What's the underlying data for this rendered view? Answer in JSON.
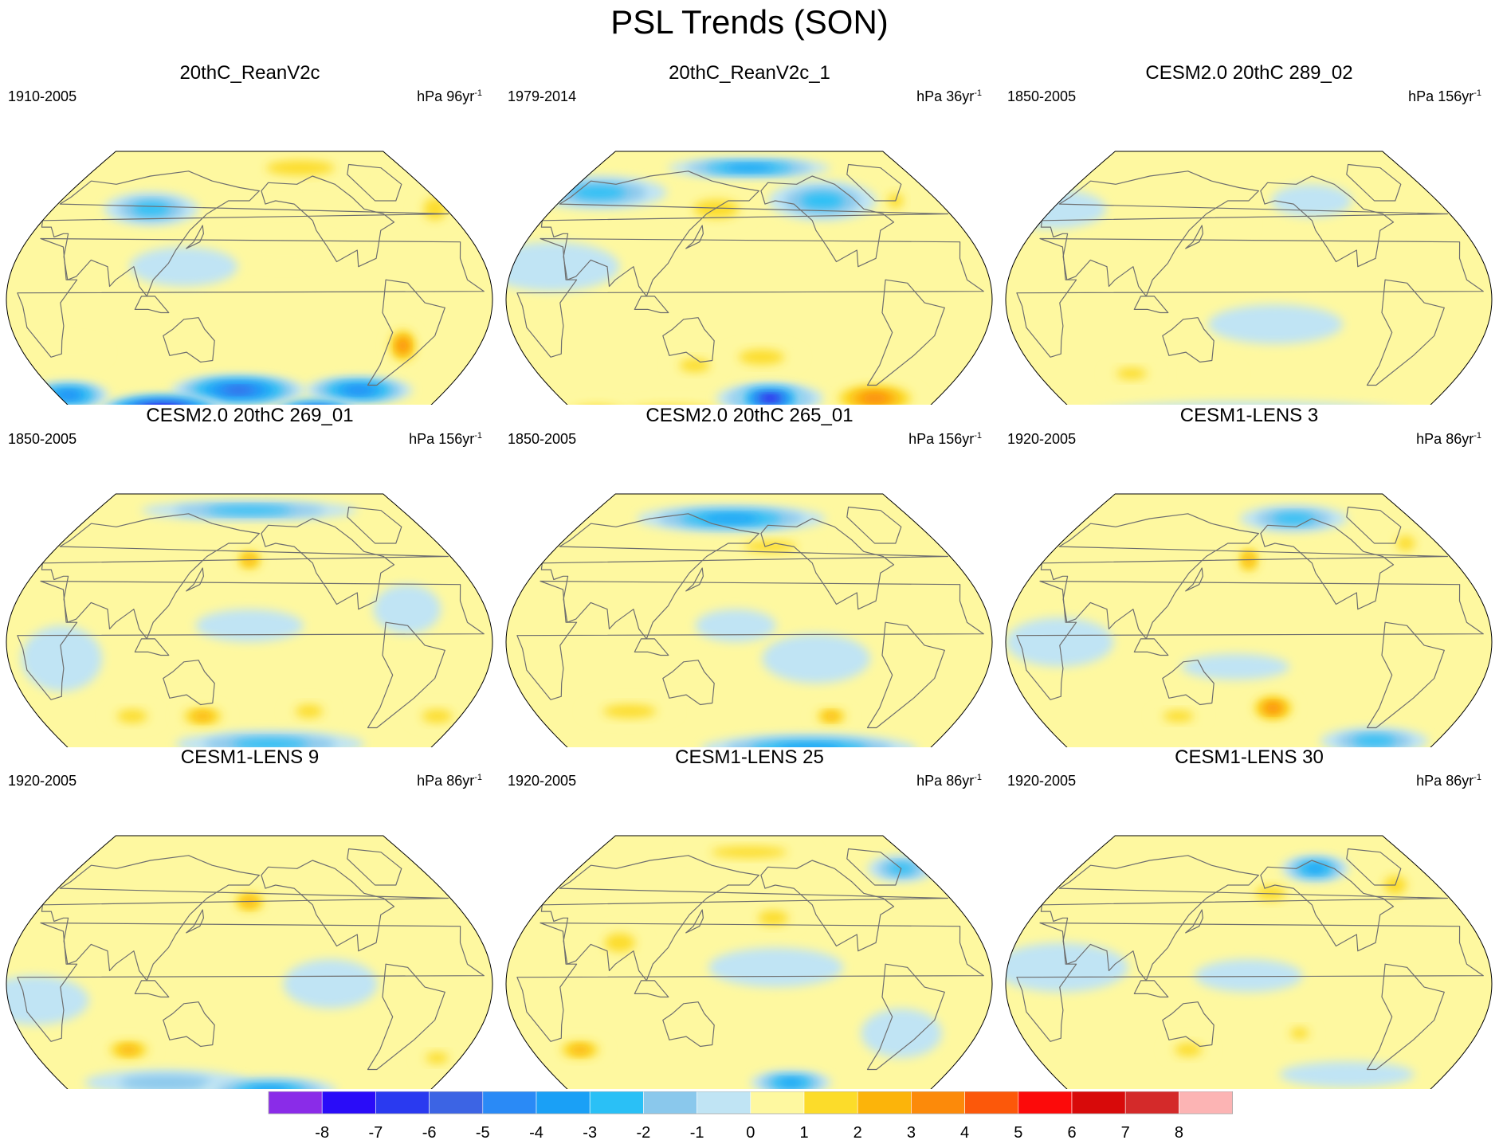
{
  "figure": {
    "title": "PSL Trends (SON)",
    "projection": "robinson, pacific-centered",
    "units_prefix": "hPa"
  },
  "panels": [
    {
      "title": "20thC_ReanV2c",
      "period": "1910-2005",
      "units_value": "96yr",
      "units_exp": "-1",
      "features": [
        {
          "lon": 90,
          "lat": -68,
          "value": -9,
          "rx": 48,
          "ry": 10
        },
        {
          "lon": 250,
          "lat": -70,
          "value": -8,
          "rx": 35,
          "ry": 9
        },
        {
          "lon": 170,
          "lat": -55,
          "value": -6,
          "rx": 50,
          "ry": 9
        },
        {
          "lon": 280,
          "lat": -55,
          "value": -5,
          "rx": 40,
          "ry": 8
        },
        {
          "lon": 10,
          "lat": -58,
          "value": -5,
          "rx": 30,
          "ry": 8
        },
        {
          "lon": 300,
          "lat": -28,
          "value": 4,
          "rx": 12,
          "ry": 12
        },
        {
          "lon": 40,
          "lat": -32,
          "value": 1,
          "rx": 25,
          "ry": 8
        },
        {
          "lon": 210,
          "lat": 30,
          "value": 1,
          "rx": 45,
          "ry": 10
        },
        {
          "lon": 240,
          "lat": 80,
          "value": 2,
          "rx": 45,
          "ry": 8
        },
        {
          "lon": 350,
          "lat": 55,
          "value": 2,
          "rx": 15,
          "ry": 12
        },
        {
          "lon": 90,
          "lat": 55,
          "value": -3,
          "rx": 35,
          "ry": 10
        },
        {
          "lon": 130,
          "lat": 20,
          "value": -1,
          "rx": 40,
          "ry": 12
        }
      ]
    },
    {
      "title": "20thC_ReanV2c_1",
      "period": "1979-2014",
      "units_value": "36yr",
      "units_exp": "-1",
      "features": [
        {
          "lon": 200,
          "lat": -60,
          "value": -8,
          "rx": 25,
          "ry": 7
        },
        {
          "lon": 200,
          "lat": -60,
          "value": -4,
          "rx": 40,
          "ry": 9
        },
        {
          "lon": 300,
          "lat": -60,
          "value": 4,
          "rx": 35,
          "ry": 10
        },
        {
          "lon": 100,
          "lat": -70,
          "value": 3,
          "rx": 55,
          "ry": 8
        },
        {
          "lon": 20,
          "lat": -70,
          "value": 3,
          "rx": 30,
          "ry": 8
        },
        {
          "lon": 190,
          "lat": -35,
          "value": 2,
          "rx": 30,
          "ry": 8
        },
        {
          "lon": 135,
          "lat": -40,
          "value": 2,
          "rx": 20,
          "ry": 7
        },
        {
          "lon": 150,
          "lat": 55,
          "value": 2,
          "rx": 30,
          "ry": 10
        },
        {
          "lon": 320,
          "lat": 60,
          "value": 2,
          "rx": 10,
          "ry": 8
        },
        {
          "lon": 30,
          "lat": 65,
          "value": -3,
          "rx": 50,
          "ry": 10
        },
        {
          "lon": 250,
          "lat": 60,
          "value": -3,
          "rx": 40,
          "ry": 12
        },
        {
          "lon": 30,
          "lat": 20,
          "value": -1,
          "rx": 50,
          "ry": 15
        },
        {
          "lon": 180,
          "lat": 80,
          "value": -4,
          "rx": 60,
          "ry": 6
        }
      ]
    },
    {
      "title": "CESM2.0 20thC 289_02",
      "period": "1850-2005",
      "units_value": "156yr",
      "units_exp": "-1",
      "features": [
        {
          "lon": 200,
          "lat": -15,
          "value": -1,
          "rx": 50,
          "ry": 12
        },
        {
          "lon": 180,
          "lat": -70,
          "value": -1,
          "rx": 120,
          "ry": 8
        },
        {
          "lon": 0,
          "lat": 55,
          "value": -1,
          "rx": 40,
          "ry": 12
        },
        {
          "lon": 240,
          "lat": 60,
          "value": -1,
          "rx": 30,
          "ry": 10
        },
        {
          "lon": 80,
          "lat": -45,
          "value": 2,
          "rx": 20,
          "ry": 6
        },
        {
          "lon": 150,
          "lat": -45,
          "value": 1,
          "rx": 20,
          "ry": 6
        },
        {
          "lon": 160,
          "lat": 45,
          "value": 1,
          "rx": 20,
          "ry": 8
        }
      ]
    },
    {
      "title": "CESM2.0 20thC 269_01",
      "period": "1850-2005",
      "units_value": "156yr",
      "units_exp": "-1",
      "features": [
        {
          "lon": 200,
          "lat": -62,
          "value": -3,
          "rx": 70,
          "ry": 8
        },
        {
          "lon": 180,
          "lat": 80,
          "value": -3,
          "rx": 80,
          "ry": 6
        },
        {
          "lon": 140,
          "lat": -45,
          "value": 3,
          "rx": 20,
          "ry": 7
        },
        {
          "lon": 230,
          "lat": -42,
          "value": 2,
          "rx": 18,
          "ry": 7
        },
        {
          "lon": 340,
          "lat": -45,
          "value": 2,
          "rx": 20,
          "ry": 7
        },
        {
          "lon": 80,
          "lat": -45,
          "value": 2,
          "rx": 20,
          "ry": 7
        },
        {
          "lon": 180,
          "lat": 50,
          "value": 3,
          "rx": 12,
          "ry": 8
        },
        {
          "lon": 180,
          "lat": 10,
          "value": -1,
          "rx": 40,
          "ry": 10
        },
        {
          "lon": 300,
          "lat": 20,
          "value": -1,
          "rx": 25,
          "ry": 15
        },
        {
          "lon": 40,
          "lat": -10,
          "value": -1,
          "rx": 30,
          "ry": 20
        }
      ]
    },
    {
      "title": "CESM2.0 20thC 265_01",
      "period": "1850-2005",
      "units_value": "156yr",
      "units_exp": "-1",
      "features": [
        {
          "lon": 240,
          "lat": -65,
          "value": -4,
          "rx": 80,
          "ry": 9
        },
        {
          "lon": 160,
          "lat": 75,
          "value": -4,
          "rx": 70,
          "ry": 8
        },
        {
          "lon": 80,
          "lat": -42,
          "value": 2,
          "rx": 35,
          "ry": 7
        },
        {
          "lon": 250,
          "lat": -45,
          "value": 3,
          "rx": 15,
          "ry": 6
        },
        {
          "lon": 200,
          "lat": 58,
          "value": 2,
          "rx": 35,
          "ry": 6
        },
        {
          "lon": 230,
          "lat": -10,
          "value": -1,
          "rx": 40,
          "ry": 15
        },
        {
          "lon": 170,
          "lat": 10,
          "value": -1,
          "rx": 30,
          "ry": 10
        }
      ]
    },
    {
      "title": "CESM1-LENS 3",
      "period": "1920-2005",
      "units_value": "86yr",
      "units_exp": "-1",
      "features": [
        {
          "lon": 200,
          "lat": -40,
          "value": 4,
          "rx": 18,
          "ry": 9
        },
        {
          "lon": 180,
          "lat": 50,
          "value": 3,
          "rx": 10,
          "ry": 10
        },
        {
          "lon": 120,
          "lat": -45,
          "value": 2,
          "rx": 20,
          "ry": 6
        },
        {
          "lon": 300,
          "lat": -60,
          "value": -3,
          "rx": 40,
          "ry": 8
        },
        {
          "lon": 230,
          "lat": 75,
          "value": -3,
          "rx": 40,
          "ry": 8
        },
        {
          "lon": 40,
          "lat": 0,
          "value": -1,
          "rx": 40,
          "ry": 15
        },
        {
          "lon": 170,
          "lat": -15,
          "value": -1,
          "rx": 40,
          "ry": 8
        },
        {
          "lon": 330,
          "lat": 60,
          "value": 2,
          "rx": 12,
          "ry": 8
        }
      ]
    },
    {
      "title": "CESM1-LENS 9",
      "period": "1920-2005",
      "units_value": "86yr",
      "units_exp": "-1",
      "features": [
        {
          "lon": 200,
          "lat": -65,
          "value": -4,
          "rx": 50,
          "ry": 8
        },
        {
          "lon": 100,
          "lat": -60,
          "value": -2,
          "rx": 60,
          "ry": 8
        },
        {
          "lon": 180,
          "lat": 50,
          "value": 3,
          "rx": 15,
          "ry": 8
        },
        {
          "lon": 80,
          "lat": -40,
          "value": 3,
          "rx": 20,
          "ry": 7
        },
        {
          "lon": 20,
          "lat": -10,
          "value": -1,
          "rx": 40,
          "ry": 15
        },
        {
          "lon": 240,
          "lat": 0,
          "value": -1,
          "rx": 35,
          "ry": 15
        },
        {
          "lon": 340,
          "lat": -45,
          "value": 2,
          "rx": 15,
          "ry": 6
        }
      ]
    },
    {
      "title": "CESM1-LENS 25",
      "period": "1920-2005",
      "units_value": "86yr",
      "units_exp": "-1",
      "features": [
        {
          "lon": 220,
          "lat": -60,
          "value": -4,
          "rx": 30,
          "ry": 7
        },
        {
          "lon": 340,
          "lat": 70,
          "value": -3,
          "rx": 25,
          "ry": 8
        },
        {
          "lon": 40,
          "lat": -40,
          "value": 3,
          "rx": 20,
          "ry": 7
        },
        {
          "lon": 180,
          "lat": 80,
          "value": 2,
          "rx": 50,
          "ry": 6
        },
        {
          "lon": 200,
          "lat": 40,
          "value": 2,
          "rx": 20,
          "ry": 8
        },
        {
          "lon": 80,
          "lat": 25,
          "value": 2,
          "rx": 20,
          "ry": 10
        },
        {
          "lon": 200,
          "lat": 10,
          "value": -1,
          "rx": 50,
          "ry": 12
        },
        {
          "lon": 300,
          "lat": -30,
          "value": -1,
          "rx": 30,
          "ry": 15
        }
      ]
    },
    {
      "title": "CESM1-LENS 30",
      "period": "1920-2005",
      "units_value": "86yr",
      "units_exp": "-1",
      "features": [
        {
          "lon": 250,
          "lat": 70,
          "value": -4,
          "rx": 25,
          "ry": 8
        },
        {
          "lon": 320,
          "lat": 60,
          "value": 2,
          "rx": 15,
          "ry": 10
        },
        {
          "lon": 200,
          "lat": 55,
          "value": 2,
          "rx": 20,
          "ry": 8
        },
        {
          "lon": 130,
          "lat": -40,
          "value": 2,
          "rx": 18,
          "ry": 7
        },
        {
          "lon": 220,
          "lat": -30,
          "value": 2,
          "rx": 12,
          "ry": 6
        },
        {
          "lon": 40,
          "lat": 10,
          "value": -1,
          "rx": 50,
          "ry": 15
        },
        {
          "lon": 180,
          "lat": 5,
          "value": -1,
          "rx": 40,
          "ry": 10
        },
        {
          "lon": 270,
          "lat": -55,
          "value": -1,
          "rx": 50,
          "ry": 8
        }
      ]
    }
  ],
  "colorbar": {
    "labels": [
      "-8",
      "-7",
      "-6",
      "-5",
      "-4",
      "-3",
      "-2",
      "-1",
      "0",
      "1",
      "2",
      "3",
      "4",
      "5",
      "6",
      "7",
      "8"
    ],
    "colors": [
      "#8a2ce8",
      "#2a0cf8",
      "#2a3af0",
      "#3c64e4",
      "#2a8af6",
      "#1aa0f6",
      "#2ac0f6",
      "#8ac8ec",
      "#c0e4f4",
      "#fef8a0",
      "#fcdc2a",
      "#fcb40a",
      "#fc8a0a",
      "#fc580a",
      "#fc0a0a",
      "#d80a0a",
      "#d42a2a",
      "#fcb4b4"
    ],
    "boundaries": [
      -8,
      -7,
      -6,
      -5,
      -4,
      -3,
      -2,
      -1,
      0,
      1,
      2,
      3,
      4,
      5,
      6,
      7,
      8
    ]
  },
  "colors": {
    "coastline": "#6e6e6e",
    "frame": "#000000"
  }
}
